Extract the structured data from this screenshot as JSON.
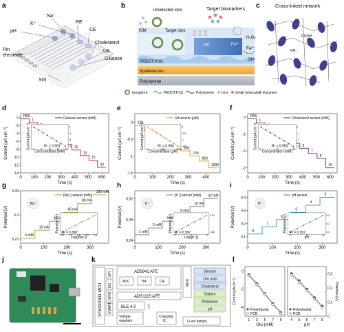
{
  "panel_labels": [
    "a",
    "b",
    "c",
    "d",
    "e",
    "f",
    "g",
    "h",
    "i",
    "j",
    "k",
    "l"
  ],
  "panel_a": {
    "labels": {
      "na": "Na⁺",
      "k": "K⁺",
      "ph": "pH",
      "re": "RE",
      "ce": "CE",
      "pin": "Pin\nelectrode",
      "chol": "Cholesterol",
      "ua": "UA",
      "glucose": "Glucose",
      "sis": "SIS"
    }
  },
  "panel_b": {
    "top_labels": {
      "target_biomarkers": "Target biomarkers",
      "unselected_ions": "Unselected ions",
      "target_ions": "Target ions"
    },
    "layer_labels": {
      "ism": "ISM",
      "pb": "PB",
      "pedot": "PEDOT:PSS",
      "sputtered": "Sputtered Au",
      "polystyrene": "Polystyrene"
    },
    "chem": {
      "fe3": "Fe³⁺",
      "fe2": "Fe²⁺",
      "h2o2": "H₂O₂",
      "oh": "OH⁻"
    },
    "legend": [
      "Ionophore",
      "PEDOT:PSS",
      "Polystyrene",
      "Ions",
      "Small molecules",
      "Enzymes"
    ]
  },
  "panel_c": {
    "title": "Cross-linked network",
    "cooh": "COOH",
    "nh2": "NH₂"
  },
  "chart_data": [
    {
      "panel": "d",
      "type": "line",
      "legend": "Glucose sensor (mM)",
      "xlabel": "Time (s)",
      "ylabel": "Current (μA cm⁻²)",
      "xlim": [
        0,
        650
      ],
      "xticks": [
        0,
        100,
        200,
        300,
        400,
        500,
        600
      ],
      "ylim": [
        -14,
        1
      ],
      "yticks": [
        0,
        -2,
        -4,
        -6,
        -8,
        -10,
        -12,
        -14
      ],
      "step_labels": [
        "PBS",
        "1",
        "3",
        "5",
        "7",
        "9",
        "11",
        "13",
        "15",
        "20"
      ],
      "levels": [
        -0.3,
        -1.3,
        -2.6,
        -4.0,
        -5.4,
        -6.8,
        -8.2,
        -9.6,
        -10.8,
        -12.6
      ],
      "inset": {
        "xlabel": "Concentration (mM)",
        "ylabel": "Current (μA cm⁻²)",
        "r2": "R² = 0.991",
        "xticks": [
          0,
          5,
          10,
          15,
          20
        ],
        "yticks": [
          0,
          -4,
          -8,
          -12
        ]
      }
    },
    {
      "panel": "e",
      "type": "line",
      "legend": "UA sensor (μM)",
      "xlabel": "Time (s)",
      "ylabel": "Current (μA cm⁻²)",
      "xlim": [
        0,
        480
      ],
      "xticks": [
        0,
        100,
        200,
        300,
        400
      ],
      "ylim": [
        -1.5,
        0.25
      ],
      "yticks": [
        0,
        -0.5,
        -1.0,
        -1.5
      ],
      "step_labels": [
        "100",
        "200",
        "300",
        "400",
        "500",
        "600",
        "700",
        "800",
        "1000"
      ],
      "levels": [
        -0.1,
        -0.25,
        -0.4,
        -0.55,
        -0.7,
        -0.85,
        -1.0,
        -1.15,
        -1.35
      ],
      "inset": {
        "xlabel": "Concentration (μM)",
        "ylabel": "Current (μA cm⁻²)",
        "r2": "R² = 0.994",
        "xticks": [
          0,
          500,
          1000
        ],
        "yticks": [
          0,
          -0.5,
          -1.0,
          -1.5
        ]
      }
    },
    {
      "panel": "f",
      "type": "line",
      "legend": "Cholesterol sensor (mM)",
      "xlabel": "Time (s)",
      "ylabel": "Current (μA cm⁻²)",
      "xlim": [
        0,
        650
      ],
      "xticks": [
        0,
        100,
        200,
        300,
        400,
        500,
        600
      ],
      "ylim": [
        -3.3,
        0.2
      ],
      "yticks": [
        0,
        -1,
        -2,
        -3
      ],
      "step_labels": [
        "PBS",
        "1",
        "2",
        "3",
        "4",
        "5",
        "6",
        "7",
        "8",
        "10"
      ],
      "levels": [
        -0.1,
        -0.35,
        -0.65,
        -0.95,
        -1.25,
        -1.55,
        -1.85,
        -2.15,
        -2.45,
        -3.0
      ],
      "inset": {
        "xlabel": "Concentration (mM)",
        "ylabel": "Current (μA cm⁻²)",
        "r2": "R² = 0.993",
        "xticks": [
          0,
          5,
          10
        ],
        "yticks": [
          0,
          -1,
          -2,
          -3
        ]
      }
    },
    {
      "panel": "g",
      "type": "line",
      "legend": "[Na⁺] sensor (mM)",
      "ion": "Na⁺",
      "xlabel": "Time (s)",
      "ylabel": "Potential (V)",
      "xlim": [
        0,
        380
      ],
      "xticks": [
        0,
        100,
        200,
        300
      ],
      "ylim": [
        0.265,
        0.33
      ],
      "yticks": [
        0.27,
        0.3,
        0.33
      ],
      "step_labels": [
        "5 mM",
        "10 mM",
        "20 mM",
        "40 mM",
        "80 mM",
        "160 mM"
      ],
      "levels": [
        0.271,
        0.281,
        0.292,
        0.303,
        0.314,
        0.325
      ],
      "inset": {
        "xlabel": "Log([Na⁺])",
        "ylabel": "Potential (V)",
        "r2": "R² = 0.997",
        "xticks": [
          "0.5",
          "1.0",
          "1.5",
          "2.0",
          "2.5"
        ],
        "yticks": []
      }
    },
    {
      "panel": "h",
      "type": "line",
      "legend": "[K⁺] sensor (mM)",
      "ion": "K⁺",
      "xlabel": "Time (s)",
      "ylabel": "Potential (V)",
      "xlim": [
        0,
        360
      ],
      "xticks": [
        0,
        100,
        200,
        300
      ],
      "ylim": [
        0.235,
        0.335
      ],
      "yticks": [
        0.24,
        0.28,
        0.32
      ],
      "step_labels": [
        "1 mM",
        "2 mM",
        "4 mM",
        "8 mM",
        "16 mM",
        "32 mM"
      ],
      "levels": [
        0.251,
        0.264,
        0.277,
        0.291,
        0.305,
        0.32
      ],
      "inset": {
        "xlabel": "Log([K⁺])",
        "ylabel": "Potential (V)",
        "r2": "R² = 0.997",
        "xticks": [
          "0",
          "1",
          "2"
        ],
        "yticks": [
          "0.30",
          "0.26"
        ]
      }
    },
    {
      "panel": "i",
      "type": "line",
      "legend": "pH sensor",
      "ion": "H⁺",
      "xlabel": "Time (s)",
      "ylabel": "Potential (V)",
      "xlim": [
        0,
        360
      ],
      "xticks": [
        0,
        100,
        200,
        300
      ],
      "ylim": [
        0.05,
        0.45
      ],
      "yticks": [
        0.1,
        0.2,
        0.3,
        0.4
      ],
      "step_labels": [
        "8",
        "7",
        "6",
        "5",
        "4",
        "3"
      ],
      "levels": [
        0.12,
        0.175,
        0.23,
        0.285,
        0.34,
        0.4
      ],
      "inset": {
        "xlabel": "pH",
        "ylabel": "Potential (V)",
        "r2": "R² = 0.997",
        "xticks": [
          "4",
          "6",
          "8"
        ],
        "yticks": [
          "0.3",
          "0.2",
          "0.1"
        ]
      }
    },
    {
      "panel": "l",
      "type": "scatter",
      "left": {
        "xlabel": "Glu (mM)",
        "ylabel": "Current (μA cm⁻²)",
        "xticks": [
          1,
          3,
          5,
          7,
          9
        ],
        "yticks": [
          0,
          -2,
          -4
        ],
        "x": [
          1,
          3,
          5,
          7,
          9
        ],
        "potentiostat": [
          -0.4,
          -1.4,
          -2.5,
          -3.6,
          -4.6
        ],
        "pcb": [
          -0.5,
          -1.5,
          -2.6,
          -3.7,
          -4.7
        ]
      },
      "right": {
        "xlabel": "pH",
        "ylabel": "Potential (V)",
        "xticks": [
          4,
          5,
          6,
          7,
          8
        ],
        "yticks": [
          0.0,
          0.1,
          0.2,
          0.3
        ],
        "x": [
          4,
          5,
          6,
          7,
          8
        ],
        "potentiostat": [
          0.3,
          0.25,
          0.19,
          0.13,
          0.07
        ],
        "pcb": [
          0.29,
          0.24,
          0.18,
          0.12,
          0.06
        ]
      },
      "series": [
        {
          "name": "Potentiostat"
        },
        {
          "name": "PCB"
        }
      ]
    }
  ],
  "panel_k": {
    "mcu": "STM32G431 MCU",
    "ifaces": [
      "SPI",
      "I2C",
      "GPIO",
      "USART"
    ],
    "ad5941": "AD5941 AFE",
    "adc": "ADC",
    "tia": "TIA",
    "ca": "CA",
    "mux": "MUX",
    "ads1115": "ADS1115 AFE",
    "ble": "BLE 4.0",
    "vreg": "Voltage regulator",
    "charging": "Charging IC",
    "battery": "Li-ion battery",
    "outputs": [
      "Glucose",
      "Uric acid",
      "Cholesterol",
      "Sodium",
      "Potassium",
      "pH"
    ]
  },
  "colors": {
    "glucose": "#c8302e",
    "ua": "#e89a2a",
    "chol": "#7b3f8c",
    "na": "#9cb83a",
    "k": "#8a8a8a",
    "ph": "#3b9ad9",
    "blue": "#4a6fb5",
    "green": "#79b64b"
  }
}
